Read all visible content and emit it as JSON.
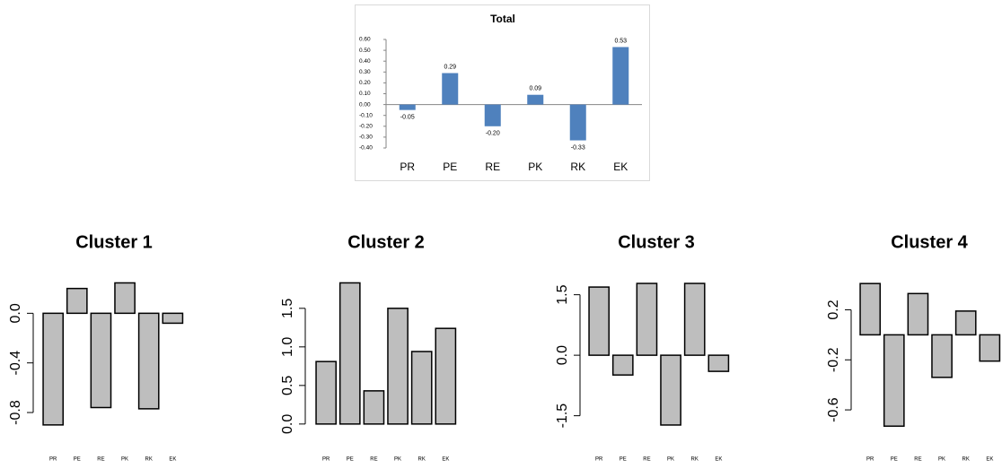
{
  "chart_data": [
    {
      "type": "bar",
      "title": "Total",
      "categories": [
        "PR",
        "PE",
        "RE",
        "PK",
        "RK",
        "EK"
      ],
      "values": [
        -0.05,
        0.29,
        -0.2,
        0.09,
        -0.33,
        0.53
      ],
      "value_labels": [
        "-0.05",
        "0.29",
        "-0.20",
        "0.09",
        "-0.33",
        "0.53"
      ],
      "color": "#4f81bd",
      "ylim": [
        -0.4,
        0.6
      ],
      "yticks": [
        {
          "value": -0.4,
          "label": "-0.40"
        },
        {
          "value": -0.3,
          "label": "-0.30"
        },
        {
          "value": -0.2,
          "label": "-0.20"
        },
        {
          "value": -0.1,
          "label": "-0.10"
        },
        {
          "value": 0,
          "label": "0.00"
        },
        {
          "value": 0.1,
          "label": "0.10"
        },
        {
          "value": 0.2,
          "label": "0.20"
        },
        {
          "value": 0.3,
          "label": "0.30"
        },
        {
          "value": 0.4,
          "label": "0.40"
        },
        {
          "value": 0.5,
          "label": "0.50"
        },
        {
          "value": 0.6,
          "label": "0.60"
        }
      ]
    },
    {
      "type": "bar",
      "title": "Cluster 1",
      "categories": [
        "PR",
        "PE",
        "RE",
        "PK",
        "RK",
        "EK"
      ],
      "values": [
        -0.9,
        0.2,
        -0.76,
        0.245,
        -0.77,
        -0.08
      ],
      "color": "#bebebe",
      "ylim": [
        -0.93,
        0.27
      ],
      "yticks": [
        -0.8,
        -0.4,
        {
          "value": 0,
          "label": "0.0"
        }
      ]
    },
    {
      "type": "bar",
      "title": "Cluster 2",
      "categories": [
        "PR",
        "PE",
        "RE",
        "PK",
        "RK",
        "EK"
      ],
      "values": [
        0.81,
        1.83,
        0.43,
        1.5,
        0.94,
        1.24
      ],
      "color": "#bebebe",
      "ylim": [
        -0.06,
        1.87
      ],
      "yticks": [
        {
          "value": 0,
          "label": "0.0"
        },
        0.5,
        {
          "value": 1,
          "label": "1.0"
        },
        1.5
      ]
    },
    {
      "type": "bar",
      "title": "Cluster 3",
      "categories": [
        "PR",
        "PE",
        "RE",
        "PK",
        "RK",
        "EK"
      ],
      "values": [
        1.69,
        -0.49,
        1.78,
        -1.73,
        1.78,
        -0.4
      ],
      "color": "#bebebe",
      "ylim": [
        -1.82,
        1.87
      ],
      "yticks": [
        -1.5,
        {
          "value": 0,
          "label": "0.0"
        },
        1.5
      ]
    },
    {
      "type": "bar",
      "title": "Cluster 4",
      "categories": [
        "PR",
        "PE",
        "RE",
        "PK",
        "RK",
        "EK"
      ],
      "values": [
        0.41,
        -0.73,
        0.33,
        -0.34,
        0.19,
        -0.21
      ],
      "color": "#bebebe",
      "ylim": [
        -0.75,
        0.44
      ],
      "yticks": [
        -0.6,
        -0.2,
        0.2
      ]
    }
  ]
}
